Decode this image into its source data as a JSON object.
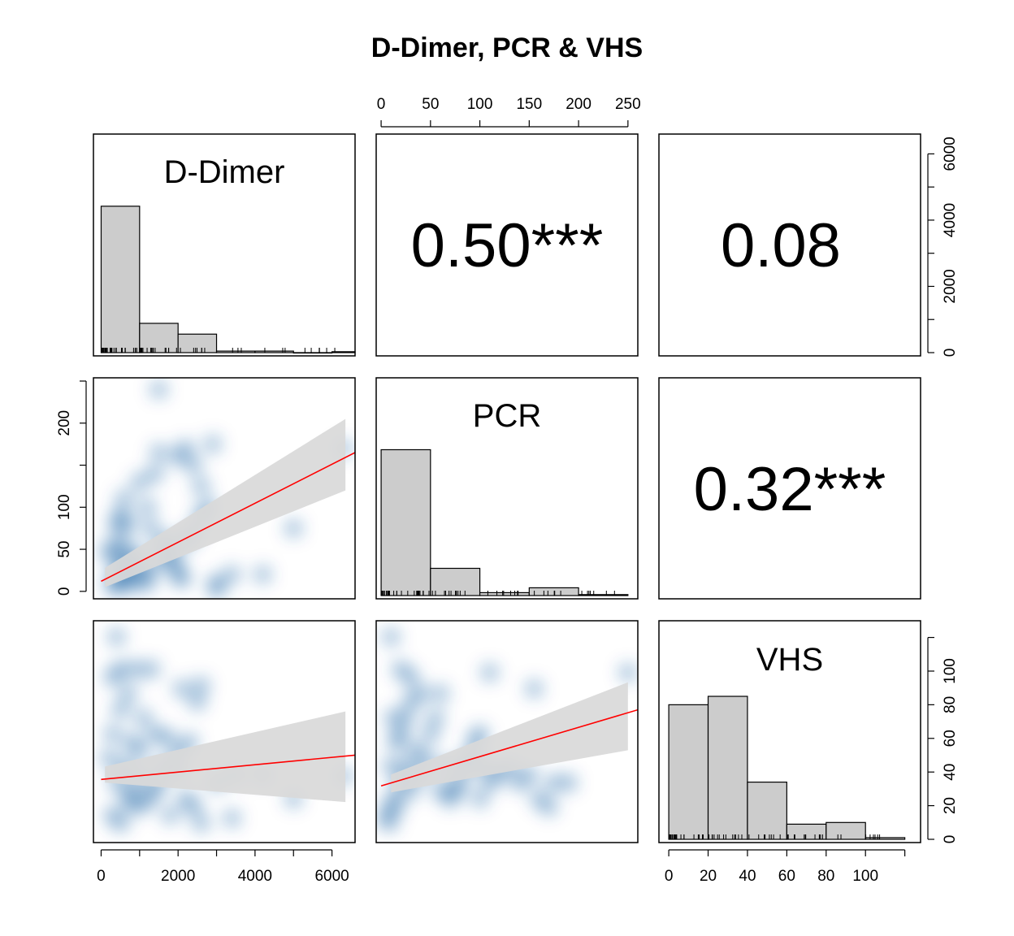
{
  "title": "D-Dimer, PCR & VHS",
  "variables": [
    "D-Dimer",
    "PCR",
    "VHS"
  ],
  "colors": {
    "hist_fill": "#cccccc",
    "density_blue": "#08519c",
    "fit_line": "#ff0000",
    "ci_band": "#d9d9d9"
  },
  "correlations": [
    {
      "pair": "D-Dimer vs PCR",
      "label": "0.50***"
    },
    {
      "pair": "D-Dimer vs VHS",
      "label": "0.08"
    },
    {
      "pair": "PCR vs VHS",
      "label": "0.32***"
    }
  ],
  "axes": {
    "ddimer_ticks": [
      "0",
      "2000",
      "4000",
      "6000"
    ],
    "pcr_ticks": [
      "0",
      "50",
      "100",
      "150",
      "200",
      "250"
    ],
    "pcr_left_ticks": [
      "0",
      "50",
      "100",
      "200"
    ],
    "vhs_ticks": [
      "0",
      "20",
      "40",
      "60",
      "80",
      "100"
    ]
  },
  "chart_data": [
    {
      "type": "bar",
      "variable": "D-Dimer",
      "bins": [
        [
          0,
          1000
        ],
        [
          1000,
          2000
        ],
        [
          2000,
          3000
        ],
        [
          3000,
          4000
        ],
        [
          4000,
          5000
        ],
        [
          5000,
          6000
        ],
        [
          6000,
          6600
        ]
      ],
      "values": [
        95,
        19,
        12,
        1,
        1,
        0,
        0.6
      ],
      "xlim": [
        -200,
        6600
      ]
    },
    {
      "type": "bar",
      "variable": "PCR",
      "bins": [
        [
          0,
          50
        ],
        [
          50,
          100
        ],
        [
          100,
          150
        ],
        [
          150,
          200
        ],
        [
          200,
          250
        ]
      ],
      "values": [
        75,
        14,
        1.5,
        4,
        0.5
      ],
      "xlim": [
        -5,
        260
      ]
    },
    {
      "type": "bar",
      "variable": "VHS",
      "bins": [
        [
          0,
          20
        ],
        [
          20,
          40
        ],
        [
          40,
          60
        ],
        [
          60,
          80
        ],
        [
          80,
          100
        ],
        [
          100,
          120
        ]
      ],
      "values": [
        80,
        85,
        34,
        9,
        10,
        1
      ],
      "xlim": [
        -5,
        128
      ],
      "ylim": [
        0,
        128
      ]
    },
    {
      "type": "scatter",
      "x_variable": "D-Dimer",
      "y_variable": "PCR",
      "xlim": [
        -200,
        6600
      ],
      "ylim": [
        -5,
        250
      ],
      "fit": {
        "x": [
          0,
          6600
        ],
        "y": [
          12,
          165
        ]
      },
      "ci": {
        "x": [
          100,
          6350
        ],
        "lower": [
          5,
          120
        ],
        "upper": [
          28,
          205
        ]
      },
      "points": [
        [
          300,
          10
        ],
        [
          400,
          5
        ],
        [
          500,
          20
        ],
        [
          600,
          15
        ],
        [
          700,
          30
        ],
        [
          800,
          8
        ],
        [
          900,
          25
        ],
        [
          300,
          40
        ],
        [
          500,
          60
        ],
        [
          700,
          80
        ],
        [
          900,
          45
        ],
        [
          1100,
          20
        ],
        [
          1200,
          10
        ],
        [
          1400,
          30
        ],
        [
          1600,
          50
        ],
        [
          1800,
          40
        ],
        [
          2000,
          20
        ],
        [
          2200,
          60
        ],
        [
          2400,
          70
        ],
        [
          2600,
          90
        ],
        [
          2800,
          100
        ],
        [
          3000,
          10
        ],
        [
          1200,
          100
        ],
        [
          1400,
          140
        ],
        [
          1500,
          240
        ],
        [
          1500,
          165
        ],
        [
          2000,
          160
        ],
        [
          2200,
          170
        ],
        [
          2400,
          150
        ],
        [
          2600,
          125
        ],
        [
          2900,
          175
        ],
        [
          500,
          90
        ],
        [
          600,
          110
        ],
        [
          1000,
          130
        ],
        [
          1300,
          75
        ],
        [
          1700,
          60
        ],
        [
          1900,
          35
        ],
        [
          2100,
          15
        ],
        [
          3400,
          20
        ],
        [
          4200,
          20
        ],
        [
          5000,
          75
        ],
        [
          3000,
          3
        ],
        [
          6300,
          170
        ],
        [
          200,
          50
        ],
        [
          400,
          80
        ],
        [
          600,
          45
        ]
      ]
    },
    {
      "type": "scatter",
      "x_variable": "D-Dimer",
      "y_variable": "VHS",
      "xlim": [
        -200,
        6600
      ],
      "ylim": [
        -5,
        128
      ],
      "fit": {
        "x": [
          0,
          6600
        ],
        "y": [
          32,
          47
        ]
      },
      "ci": {
        "x": [
          100,
          6350
        ],
        "lower": [
          30,
          18
        ],
        "upper": [
          40,
          74
        ]
      },
      "points": [
        [
          300,
          10
        ],
        [
          500,
          5
        ],
        [
          700,
          20
        ],
        [
          900,
          15
        ],
        [
          400,
          30
        ],
        [
          600,
          40
        ],
        [
          800,
          25
        ],
        [
          1000,
          35
        ],
        [
          1200,
          18
        ],
        [
          1500,
          28
        ],
        [
          1800,
          10
        ],
        [
          2200,
          20
        ],
        [
          2600,
          5
        ],
        [
          3000,
          30
        ],
        [
          3400,
          8
        ],
        [
          300,
          60
        ],
        [
          500,
          75
        ],
        [
          800,
          55
        ],
        [
          1100,
          70
        ],
        [
          1400,
          60
        ],
        [
          1700,
          58
        ],
        [
          2000,
          50
        ],
        [
          2300,
          55
        ],
        [
          2500,
          80
        ],
        [
          2600,
          90
        ],
        [
          2100,
          88
        ],
        [
          300,
          95
        ],
        [
          500,
          100
        ],
        [
          900,
          100
        ],
        [
          1300,
          100
        ],
        [
          400,
          120
        ],
        [
          1000,
          50
        ],
        [
          700,
          85
        ],
        [
          1600,
          40
        ],
        [
          2000,
          38
        ],
        [
          3500,
          35
        ],
        [
          4200,
          35
        ],
        [
          5000,
          20
        ],
        [
          6300,
          34
        ],
        [
          200,
          45
        ],
        [
          1300,
          25
        ],
        [
          2400,
          15
        ]
      ]
    },
    {
      "type": "scatter",
      "x_variable": "PCR",
      "y_variable": "VHS",
      "xlim": [
        -5,
        260
      ],
      "ylim": [
        -5,
        128
      ],
      "fit": {
        "x": [
          0,
          260
        ],
        "y": [
          28,
          75
        ]
      },
      "ci": {
        "x": [
          10,
          250
        ],
        "lower": [
          24,
          50
        ],
        "upper": [
          35,
          92
        ]
      },
      "points": [
        [
          5,
          10
        ],
        [
          8,
          5
        ],
        [
          12,
          20
        ],
        [
          15,
          15
        ],
        [
          20,
          30
        ],
        [
          25,
          40
        ],
        [
          30,
          25
        ],
        [
          10,
          40
        ],
        [
          15,
          55
        ],
        [
          20,
          60
        ],
        [
          25,
          70
        ],
        [
          30,
          80
        ],
        [
          35,
          50
        ],
        [
          40,
          35
        ],
        [
          45,
          45
        ],
        [
          50,
          60
        ],
        [
          55,
          70
        ],
        [
          60,
          85
        ],
        [
          65,
          40
        ],
        [
          70,
          20
        ],
        [
          75,
          25
        ],
        [
          80,
          30
        ],
        [
          85,
          40
        ],
        [
          90,
          45
        ],
        [
          95,
          55
        ],
        [
          100,
          60
        ],
        [
          105,
          40
        ],
        [
          110,
          30
        ],
        [
          120,
          35
        ],
        [
          130,
          40
        ],
        [
          140,
          30
        ],
        [
          150,
          35
        ],
        [
          160,
          20
        ],
        [
          170,
          15
        ],
        [
          175,
          30
        ],
        [
          155,
          88
        ],
        [
          190,
          30
        ],
        [
          110,
          98
        ],
        [
          250,
          98
        ],
        [
          10,
          120
        ],
        [
          20,
          100
        ],
        [
          30,
          95
        ],
        [
          40,
          85
        ],
        [
          12,
          70
        ],
        [
          60,
          25
        ],
        [
          100,
          20
        ]
      ]
    }
  ]
}
